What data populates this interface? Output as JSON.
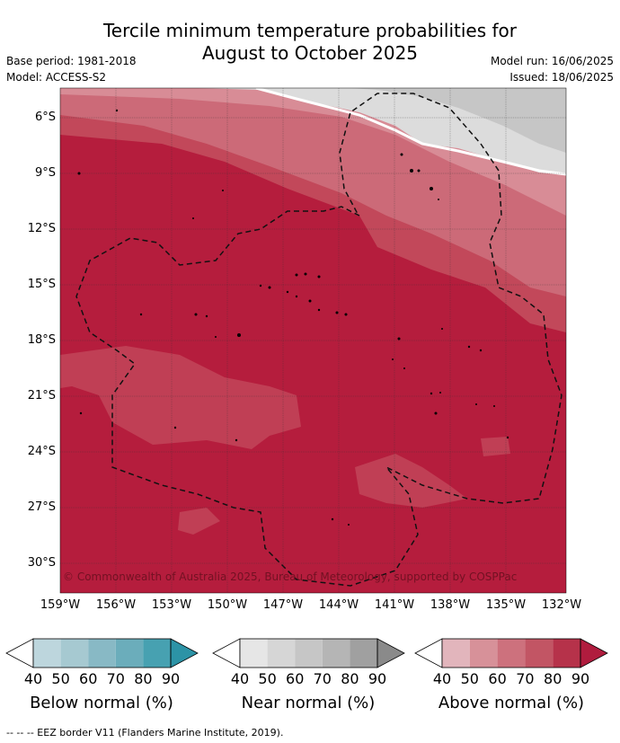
{
  "title_line1": "Tercile minimum temperature probabilities for",
  "title_line2": "August to October 2025",
  "meta_left": {
    "base_period": "Base period: 1981-2018",
    "model": "Model: ACCESS-S2"
  },
  "meta_right": {
    "model_run": "Model run: 16/06/2025",
    "issued": "Issued: 18/06/2025"
  },
  "lat_labels": [
    "6°S",
    "9°S",
    "12°S",
    "15°S",
    "18°S",
    "21°S",
    "24°S",
    "27°S",
    "30°S"
  ],
  "lon_labels": [
    "159°W",
    "156°W",
    "153°W",
    "150°W",
    "147°W",
    "144°W",
    "141°W",
    "138°W",
    "135°W",
    "132°W"
  ],
  "copyright": "© Commonwealth of Australia 2025, Bureau of Meteorology, supported by COSPPac",
  "colorbars": [
    {
      "title": "Below normal (%)",
      "ticks": [
        "40",
        "50",
        "60",
        "70",
        "80",
        "90"
      ],
      "colors": [
        "#ffffff",
        "#bdd6dd",
        "#a6c9d1",
        "#88b9c5",
        "#6badbb",
        "#47a1b1",
        "#2c93a6"
      ]
    },
    {
      "title": "Near normal (%)",
      "ticks": [
        "40",
        "50",
        "60",
        "70",
        "80",
        "90"
      ],
      "colors": [
        "#ffffff",
        "#e6e6e6",
        "#d6d6d6",
        "#c6c6c6",
        "#b5b5b5",
        "#a0a0a0",
        "#8a8a8a"
      ]
    },
    {
      "title": "Above normal (%)",
      "ticks": [
        "40",
        "50",
        "60",
        "70",
        "80",
        "90"
      ],
      "colors": [
        "#ffffff",
        "#e2b5bc",
        "#d79199",
        "#cd717d",
        "#c25564",
        "#b6324a",
        "#b01c3e"
      ]
    }
  ],
  "footnote": "--  --  -- EEZ border V11 (Flanders Marine Institute, 2019).",
  "colors": {
    "above_90": "#b51d3d",
    "above_80": "#c2485a",
    "above_70": "#cc6a78",
    "above_60": "#d88c96",
    "near_50": "#dcdcdc",
    "near_60": "#c8c8c8"
  }
}
